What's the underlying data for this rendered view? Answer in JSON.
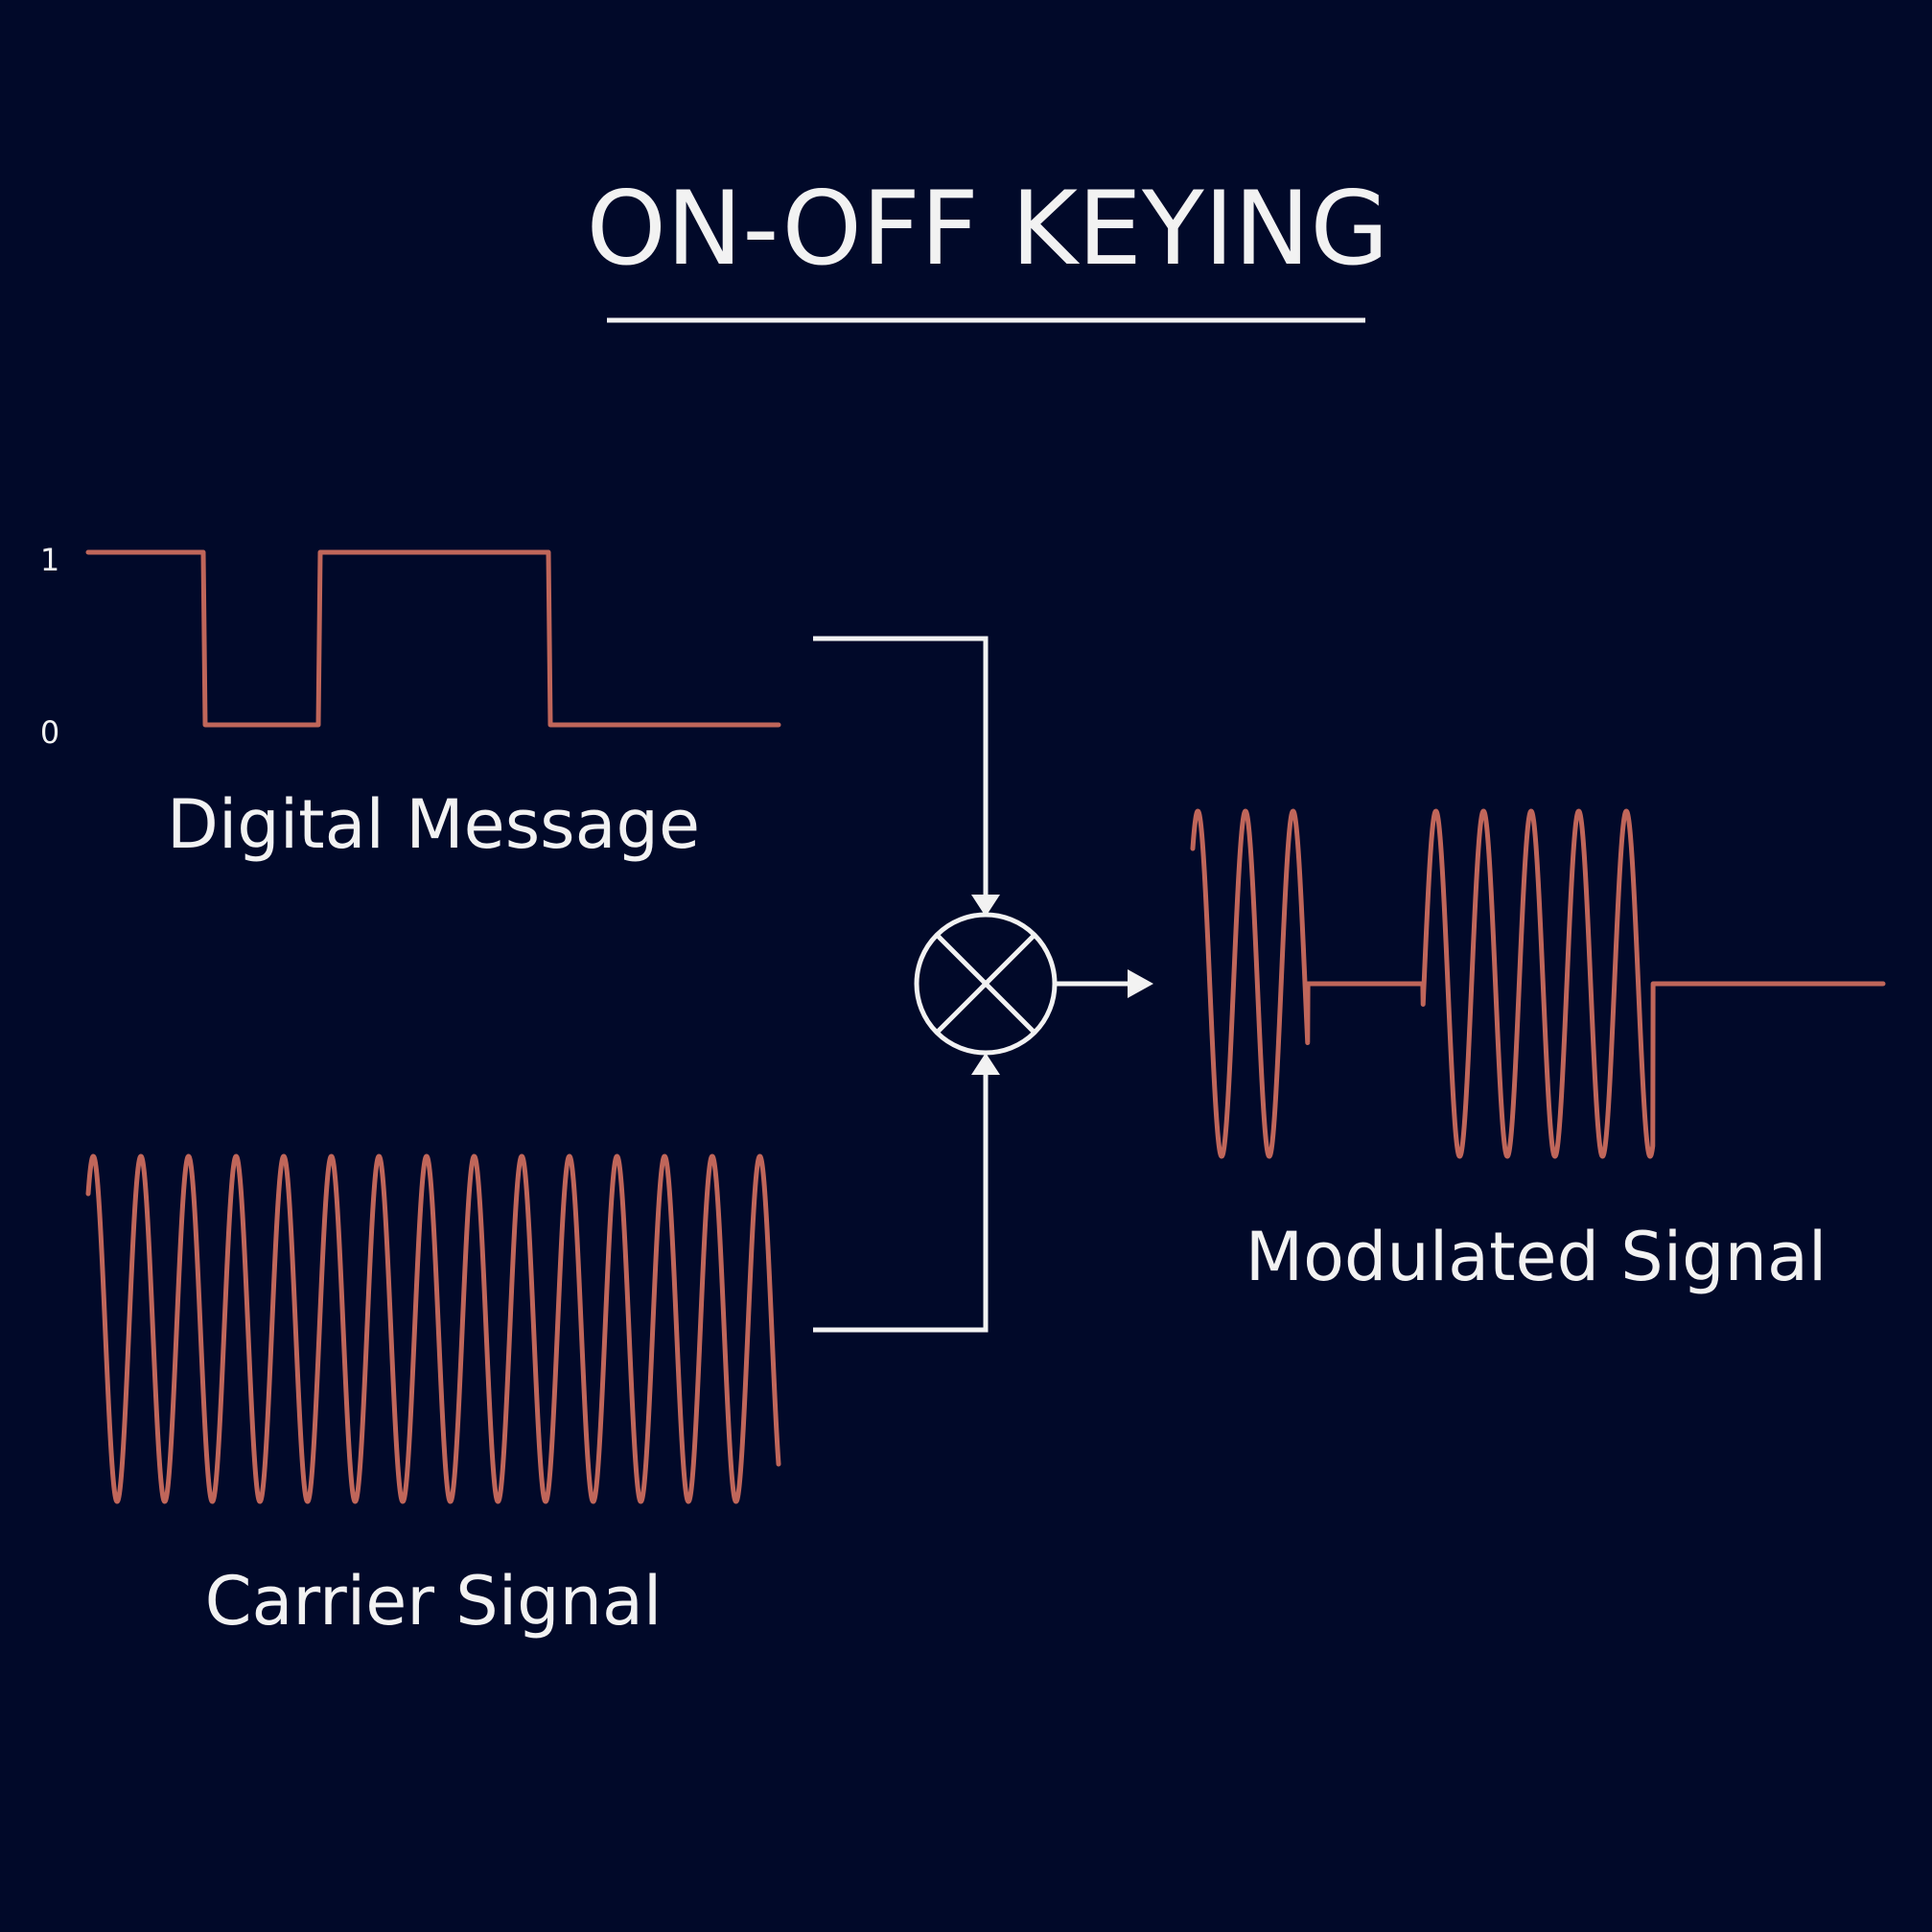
{
  "title": "ON-OFF KEYING",
  "colors": {
    "background": "#010929",
    "signal": "#c0665a",
    "foreground": "#f2f2f2"
  },
  "digital_message": {
    "label": "Digital Message",
    "level_high": "1",
    "level_low": "0",
    "bits": [
      1,
      0,
      1,
      1,
      0,
      0
    ]
  },
  "carrier_signal": {
    "label": "Carrier Signal",
    "cycles": 14.5
  },
  "modulated_signal": {
    "label": "Modulated Signal"
  },
  "mixer": {
    "icon": "multiplier-icon"
  }
}
